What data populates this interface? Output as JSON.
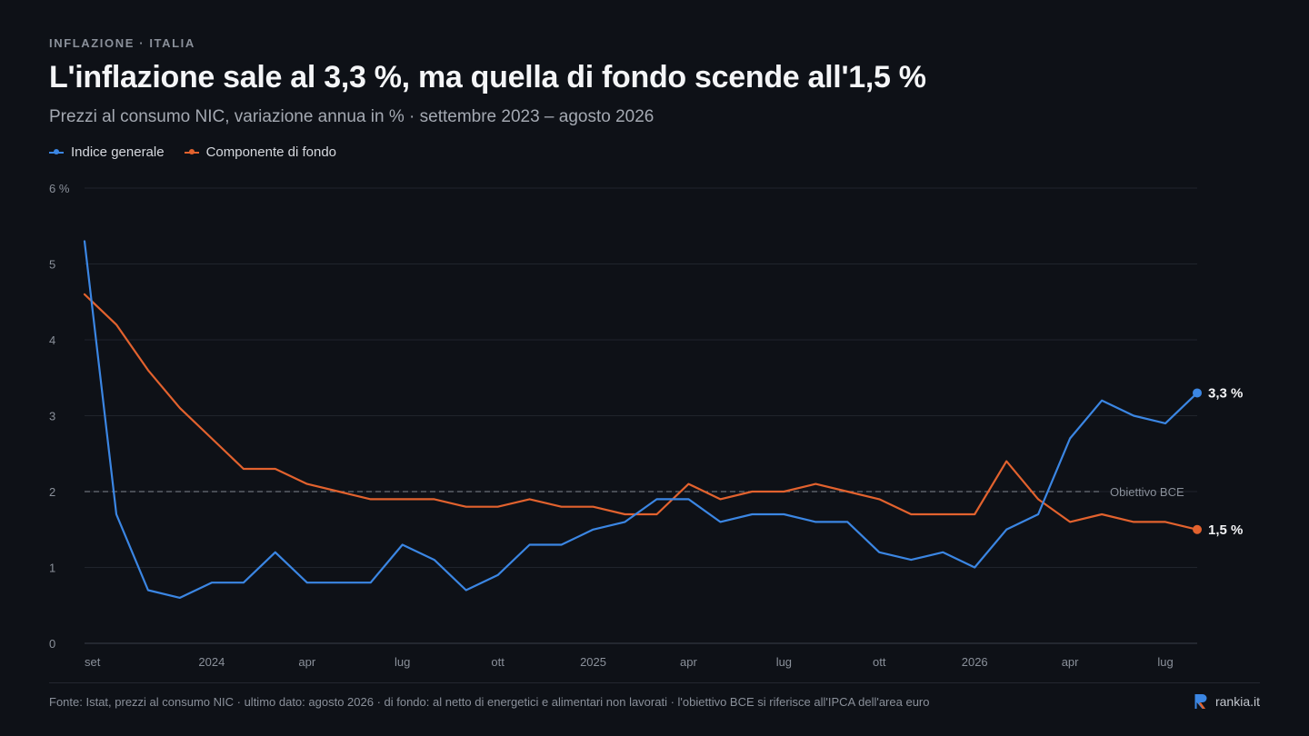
{
  "header": {
    "kicker": "INFLAZIONE · ITALIA",
    "title": "L'inflazione sale al 3,3 %, ma quella di fondo scende all'1,5 %",
    "subtitle": "Prezzi al consumo NIC, variazione annua in % · settembre 2023 – agosto 2026"
  },
  "footer": {
    "source": "Fonte: Istat, prezzi al consumo NIC · ultimo dato: agosto 2026 · di fondo: al netto di energetici e alimentari non lavorati · l'obiettivo BCE si riferisce all'IPCA dell'area euro",
    "brand": "rankia.it"
  },
  "colors": {
    "background": "#0e1117",
    "grid": "#20242c",
    "headline_index": "#3b86e3",
    "core": "#e2622e",
    "target_line": "#6b7079"
  },
  "chart_data": {
    "type": "line",
    "ylim": [
      0,
      6
    ],
    "yticks": [
      0,
      1,
      2,
      3,
      4,
      5,
      6
    ],
    "ytick_labels": [
      "0",
      "1",
      "2",
      "3",
      "4",
      "5",
      "6 %"
    ],
    "x": [
      "2023-09",
      "2023-10",
      "2023-11",
      "2023-12",
      "2024-01",
      "2024-02",
      "2024-03",
      "2024-04",
      "2024-05",
      "2024-06",
      "2024-07",
      "2024-08",
      "2024-09",
      "2024-10",
      "2024-11",
      "2024-12",
      "2025-01",
      "2025-02",
      "2025-03",
      "2025-04",
      "2025-05",
      "2025-06",
      "2025-07",
      "2025-08",
      "2025-09",
      "2025-10",
      "2025-11",
      "2025-12",
      "2026-01",
      "2026-02",
      "2026-03",
      "2026-04",
      "2026-05",
      "2026-06",
      "2026-07",
      "2026-08"
    ],
    "xticks": [
      {
        "index": 0,
        "label": "set"
      },
      {
        "index": 4,
        "label": "2024"
      },
      {
        "index": 7,
        "label": "apr"
      },
      {
        "index": 10,
        "label": "lug"
      },
      {
        "index": 13,
        "label": "ott"
      },
      {
        "index": 16,
        "label": "2025"
      },
      {
        "index": 19,
        "label": "apr"
      },
      {
        "index": 22,
        "label": "lug"
      },
      {
        "index": 25,
        "label": "ott"
      },
      {
        "index": 28,
        "label": "2026"
      },
      {
        "index": 31,
        "label": "apr"
      },
      {
        "index": 34,
        "label": "lug"
      }
    ],
    "series": [
      {
        "name": "Indice generale",
        "color": "#3b86e3",
        "values": [
          5.3,
          1.7,
          0.7,
          0.6,
          0.8,
          0.8,
          1.2,
          0.8,
          0.8,
          0.8,
          1.3,
          1.1,
          0.7,
          0.9,
          1.3,
          1.3,
          1.5,
          1.6,
          1.9,
          1.9,
          1.6,
          1.7,
          1.7,
          1.6,
          1.6,
          1.2,
          1.1,
          1.2,
          1.0,
          1.5,
          1.7,
          2.7,
          3.2,
          3.0,
          2.9,
          3.3
        ],
        "end_label": "3,3 %"
      },
      {
        "name": "Componente di fondo",
        "color": "#e2622e",
        "values": [
          4.6,
          4.2,
          3.6,
          3.1,
          2.7,
          2.3,
          2.3,
          2.1,
          2.0,
          1.9,
          1.9,
          1.9,
          1.8,
          1.8,
          1.9,
          1.8,
          1.8,
          1.7,
          1.7,
          2.1,
          1.9,
          2.0,
          2.0,
          2.1,
          2.0,
          1.9,
          1.7,
          1.7,
          1.7,
          2.4,
          1.9,
          1.6,
          1.7,
          1.6,
          1.6,
          1.5
        ],
        "end_label": "1,5 %"
      }
    ],
    "reference_line": {
      "value": 2,
      "label": "Obiettivo BCE",
      "style": "dashed"
    },
    "grid": true,
    "legend_position": "top-left"
  }
}
